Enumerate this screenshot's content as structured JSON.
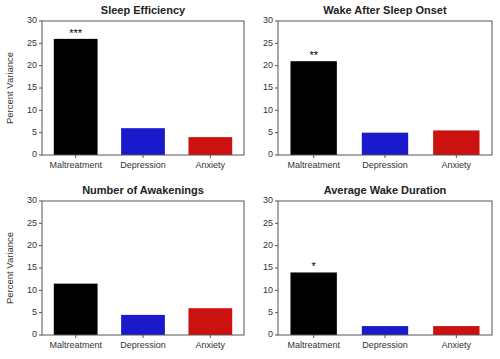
{
  "chart_data": [
    {
      "type": "bar",
      "title": "Sleep Efficiency",
      "categories": [
        "Maltreatment",
        "Depression",
        "Anxiety"
      ],
      "values": [
        26,
        6,
        4
      ],
      "colors": [
        "#000000",
        "#1a1acc",
        "#cc1111"
      ],
      "annotation": "***",
      "ylabel": "Percent Variance",
      "ylim": [
        0,
        30
      ],
      "yticks": [
        0,
        5,
        10,
        15,
        20,
        25,
        30
      ],
      "grid": false
    },
    {
      "type": "bar",
      "title": "Wake After Sleep Onset",
      "categories": [
        "Maltreatment",
        "Depression",
        "Anxiety"
      ],
      "values": [
        21,
        5,
        5.5
      ],
      "colors": [
        "#000000",
        "#1a1acc",
        "#cc1111"
      ],
      "annotation": "**",
      "ylim": [
        0,
        30
      ],
      "yticks": [
        0,
        5,
        10,
        15,
        20,
        25,
        30
      ],
      "grid": false
    },
    {
      "type": "bar",
      "title": "Number of Awakenings",
      "categories": [
        "Maltreatment",
        "Depression",
        "Anxiety"
      ],
      "values": [
        11.5,
        4.5,
        6
      ],
      "colors": [
        "#000000",
        "#1a1acc",
        "#cc1111"
      ],
      "ylabel": "Percent Variance",
      "ylim": [
        0,
        30
      ],
      "yticks": [
        0,
        5,
        10,
        15,
        20,
        25,
        30
      ],
      "grid": false
    },
    {
      "type": "bar",
      "title": "Average Wake Duration",
      "categories": [
        "Maltreatment",
        "Depression",
        "Anxiety"
      ],
      "values": [
        14,
        2,
        2
      ],
      "colors": [
        "#000000",
        "#1a1acc",
        "#cc1111"
      ],
      "annotation": "*",
      "ylim": [
        0,
        30
      ],
      "yticks": [
        0,
        5,
        10,
        15,
        20,
        25,
        30
      ],
      "grid": false
    }
  ]
}
